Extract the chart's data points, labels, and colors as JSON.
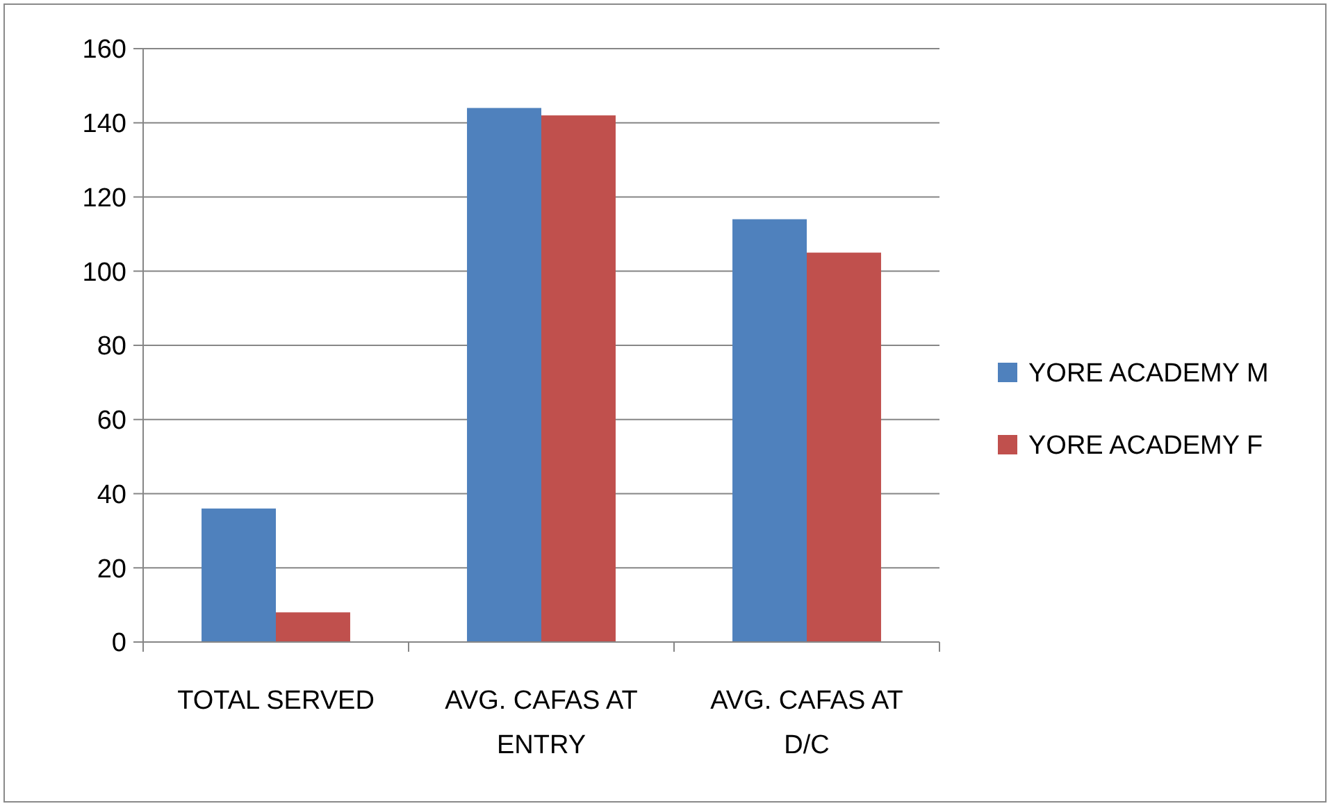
{
  "chart_data": {
    "type": "bar",
    "categories": [
      "TOTAL SERVED",
      "AVG. CAFAS AT ENTRY",
      "AVG. CAFAS AT D/C"
    ],
    "series": [
      {
        "name": "YORE ACADEMY M",
        "color": "#4f81bd",
        "values": [
          36,
          144,
          114
        ]
      },
      {
        "name": "YORE ACADEMY F",
        "color": "#c0504d",
        "values": [
          8,
          142,
          105
        ]
      }
    ],
    "ylim": [
      0,
      160
    ],
    "yticks": [
      0,
      20,
      40,
      60,
      80,
      100,
      120,
      140,
      160
    ],
    "grid": "y",
    "legend": "right"
  }
}
